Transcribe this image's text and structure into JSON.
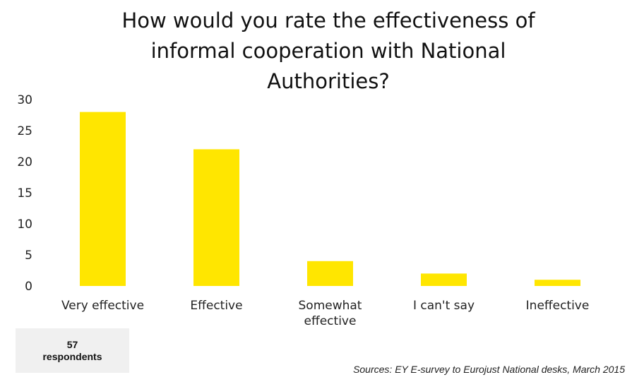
{
  "chart_data": {
    "type": "bar",
    "title_lines": [
      "How would you rate the effectiveness  of",
      "informal cooperation with National",
      "Authorities?"
    ],
    "categories": [
      [
        "Very effective"
      ],
      [
        "Effective"
      ],
      [
        "Somewhat",
        "effective"
      ],
      [
        "I can't say"
      ],
      [
        "Ineffective"
      ]
    ],
    "values": [
      28,
      22,
      4,
      2,
      1
    ],
    "ylim": [
      0,
      30
    ],
    "yticks": [
      0,
      5,
      10,
      15,
      20,
      25,
      30
    ],
    "grid": false,
    "bar_color": "#FFE600",
    "xlabel": "",
    "ylabel": ""
  },
  "respondents": {
    "line1": "57",
    "line2": "respondents"
  },
  "source": "Sources: EY E-survey to Eurojust National desks, March 2015"
}
